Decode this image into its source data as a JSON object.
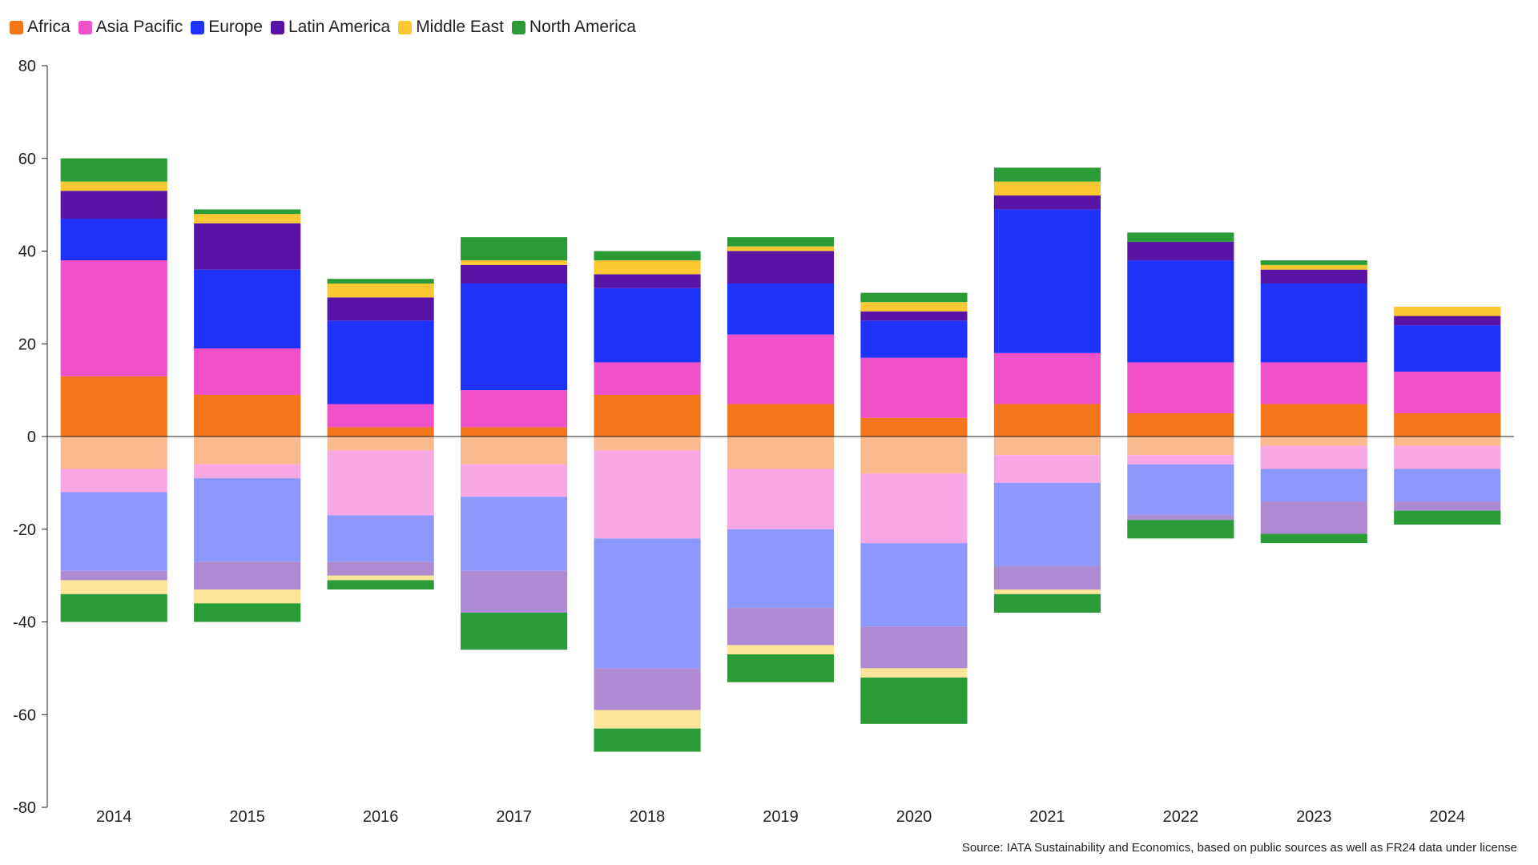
{
  "chart_data": {
    "type": "bar",
    "stacked": true,
    "categories": [
      "2014",
      "2015",
      "2016",
      "2017",
      "2018",
      "2019",
      "2020",
      "2021",
      "2022",
      "2023",
      "2024"
    ],
    "ylim": [
      -80,
      80
    ],
    "yticks": [
      80,
      60,
      40,
      20,
      0,
      -20,
      -40,
      -60,
      -80
    ],
    "ytick_labels": [
      "80",
      "60",
      "40",
      "20",
      "0",
      "-20",
      "-40",
      "-60",
      "-80"
    ],
    "legend_position": "top-left",
    "series": [
      {
        "name": "Africa",
        "color": "#f5761a",
        "neg_color": "#f9b98e",
        "positive": [
          13,
          9,
          2,
          2,
          9,
          7,
          4,
          7,
          5,
          7,
          5
        ],
        "negative": [
          -7,
          -6,
          -3,
          -6,
          -3,
          -7,
          -8,
          -4,
          -4,
          -2,
          -2
        ]
      },
      {
        "name": "Asia Pacific",
        "color": "#f050c8",
        "neg_color": "#f7a8e4",
        "positive": [
          25,
          10,
          5,
          8,
          7,
          15,
          13,
          11,
          11,
          9,
          9
        ],
        "negative": [
          -5,
          -3,
          -14,
          -7,
          -19,
          -13,
          -15,
          -6,
          -2,
          -5,
          -5
        ]
      },
      {
        "name": "Europe",
        "color": "#1e32fa",
        "neg_color": "#8e98fc",
        "positive": [
          9,
          17,
          18,
          23,
          16,
          11,
          8,
          31,
          22,
          17,
          10
        ],
        "negative": [
          -17,
          -18,
          -10,
          -16,
          -28,
          -17,
          -18,
          -18,
          -11,
          -7,
          -7
        ]
      },
      {
        "name": "Latin America",
        "color": "#5a14a5",
        "neg_color": "#ad8ad2",
        "positive": [
          6,
          10,
          5,
          4,
          3,
          7,
          2,
          3,
          4,
          3,
          2
        ],
        "negative": [
          -2,
          -6,
          -3,
          -9,
          -9,
          -8,
          -9,
          -5,
          -1,
          -7,
          -2
        ]
      },
      {
        "name": "Middle East",
        "color": "#fac832",
        "neg_color": "#fce498",
        "positive": [
          2,
          2,
          3,
          1,
          3,
          1,
          2,
          3,
          0,
          1,
          2
        ],
        "negative": [
          -3,
          -3,
          -1,
          0,
          -4,
          -2,
          -2,
          -1,
          0,
          0,
          0
        ]
      },
      {
        "name": "North America",
        "color": "#2a9b37",
        "neg_color": "#2a9b37",
        "positive": [
          5,
          1,
          1,
          5,
          2,
          2,
          2,
          3,
          2,
          1,
          0
        ],
        "negative": [
          -6,
          -4,
          -2,
          -8,
          -5,
          -6,
          -10,
          -4,
          -4,
          -2,
          -3
        ]
      }
    ],
    "source": "Source: IATA Sustainability and Economics, based on public sources as well as FR24 data under license"
  }
}
